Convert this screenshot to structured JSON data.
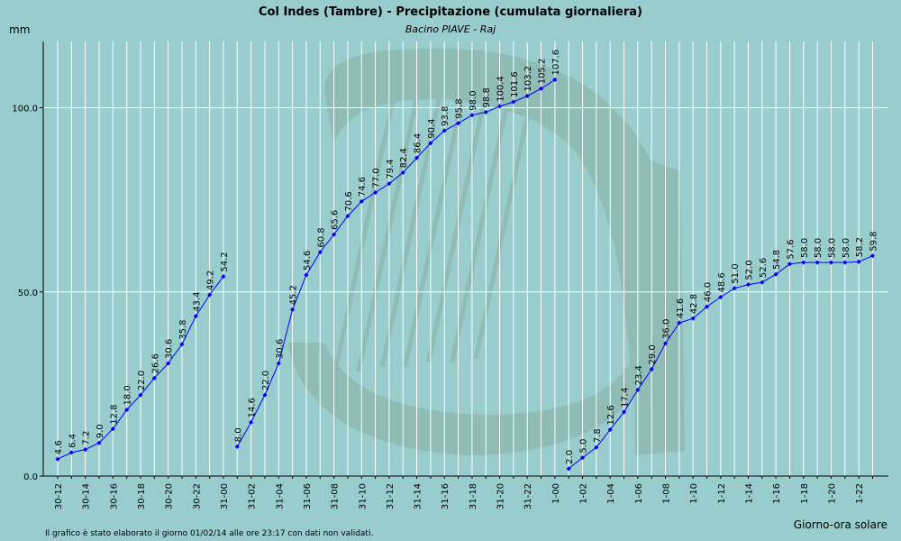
{
  "chart_data": {
    "type": "line",
    "title": "Col Indes (Tambre) - Precipitazione (cumulata giornaliera)",
    "subtitle": "Bacino PIAVE - Raj",
    "ylabel": "mm",
    "xlabel": "Giorno-ora solare",
    "footnote": "Il grafico è stato elaborato il giorno 01/02/14 alle ore 23:17 con dati non validati.",
    "ylim": [
      0,
      118
    ],
    "yticks": [
      0,
      50,
      100
    ],
    "ytick_labels": [
      "0.0",
      "50.0",
      "100.0"
    ],
    "grid": true,
    "x_labels": [
      "30-12",
      "30-14",
      "30-16",
      "30-18",
      "30-20",
      "30-22",
      "31-00",
      "31-02",
      "31-04",
      "31-06",
      "31-08",
      "31-10",
      "31-12",
      "31-14",
      "31-16",
      "31-18",
      "31-20",
      "31-22",
      "1-00",
      "1-02",
      "1-04",
      "1-06",
      "1-08",
      "1-10",
      "1-12",
      "1-14",
      "1-16",
      "1-18",
      "1-20",
      "1-22"
    ],
    "series": [
      {
        "x": [
          "30-12",
          "30-13",
          "30-14",
          "30-15",
          "30-16",
          "30-17",
          "30-18",
          "30-19",
          "30-20",
          "30-21",
          "30-22",
          "30-23",
          "31-00"
        ],
        "values": [
          4.6,
          6.4,
          7.2,
          9.0,
          12.8,
          18.0,
          22.0,
          26.6,
          30.6,
          35.8,
          43.4,
          49.2,
          54.2
        ],
        "labels": [
          "4.6",
          "6.4",
          "7.2",
          "9.0",
          "12.8",
          "18.0",
          "22.0",
          "26.6",
          "30.6",
          "35.8",
          "43.4",
          "49.2",
          "54.2"
        ]
      },
      {
        "x": [
          "31-01",
          "31-02",
          "31-03",
          "31-04",
          "31-05",
          "31-06",
          "31-07",
          "31-08",
          "31-09",
          "31-10",
          "31-11",
          "31-12",
          "31-13",
          "31-14",
          "31-15",
          "31-16",
          "31-17",
          "31-18",
          "31-19",
          "31-20",
          "31-21",
          "31-22",
          "31-23",
          "1-00"
        ],
        "values": [
          8.0,
          14.6,
          22.0,
          30.6,
          45.2,
          54.6,
          60.8,
          65.6,
          70.6,
          74.6,
          77.0,
          79.4,
          82.4,
          86.4,
          90.4,
          93.8,
          95.8,
          98.0,
          98.8,
          100.4,
          101.6,
          103.2,
          105.2,
          107.6
        ],
        "labels": [
          "8.0",
          "14.6",
          "22.0",
          "30.6",
          "45.2",
          "54.6",
          "60.8",
          "65.6",
          "70.6",
          "74.6",
          "77.0",
          "79.4",
          "82.4",
          "86.4",
          "90.4",
          "93.8",
          "95.8",
          "98.0",
          "98.8",
          "100.4",
          "101.6",
          "103.2",
          "105.2",
          "107.6"
        ]
      },
      {
        "x": [
          "1-01",
          "1-02",
          "1-03",
          "1-04",
          "1-05",
          "1-06",
          "1-07",
          "1-08",
          "1-09",
          "1-10",
          "1-11",
          "1-12",
          "1-13",
          "1-14",
          "1-15",
          "1-16",
          "1-17",
          "1-18",
          "1-19",
          "1-20",
          "1-21",
          "1-22",
          "1-23"
        ],
        "values": [
          2.0,
          5.0,
          7.8,
          12.6,
          17.4,
          23.4,
          29.0,
          36.0,
          41.6,
          42.8,
          46.0,
          48.6,
          51.0,
          52.0,
          52.6,
          54.8,
          57.6,
          58.0,
          58.0,
          58.0,
          58.0,
          58.2,
          59.8
        ],
        "labels": [
          "2.0",
          "5.0",
          "7.8",
          "12.6",
          "17.4",
          "23.4",
          "29.0",
          "36.0",
          "41.6",
          "42.8",
          "46.0",
          "48.6",
          "51.0",
          "52.0",
          "52.6",
          "54.8",
          "57.6",
          "58.0",
          "58.0",
          "58.0",
          "58.0",
          "58.2",
          "59.8"
        ]
      }
    ],
    "colors": {
      "background": "#99cccc",
      "grid": "#ffffff",
      "line": "#0000ff",
      "watermark": "#8fbbb3"
    }
  }
}
